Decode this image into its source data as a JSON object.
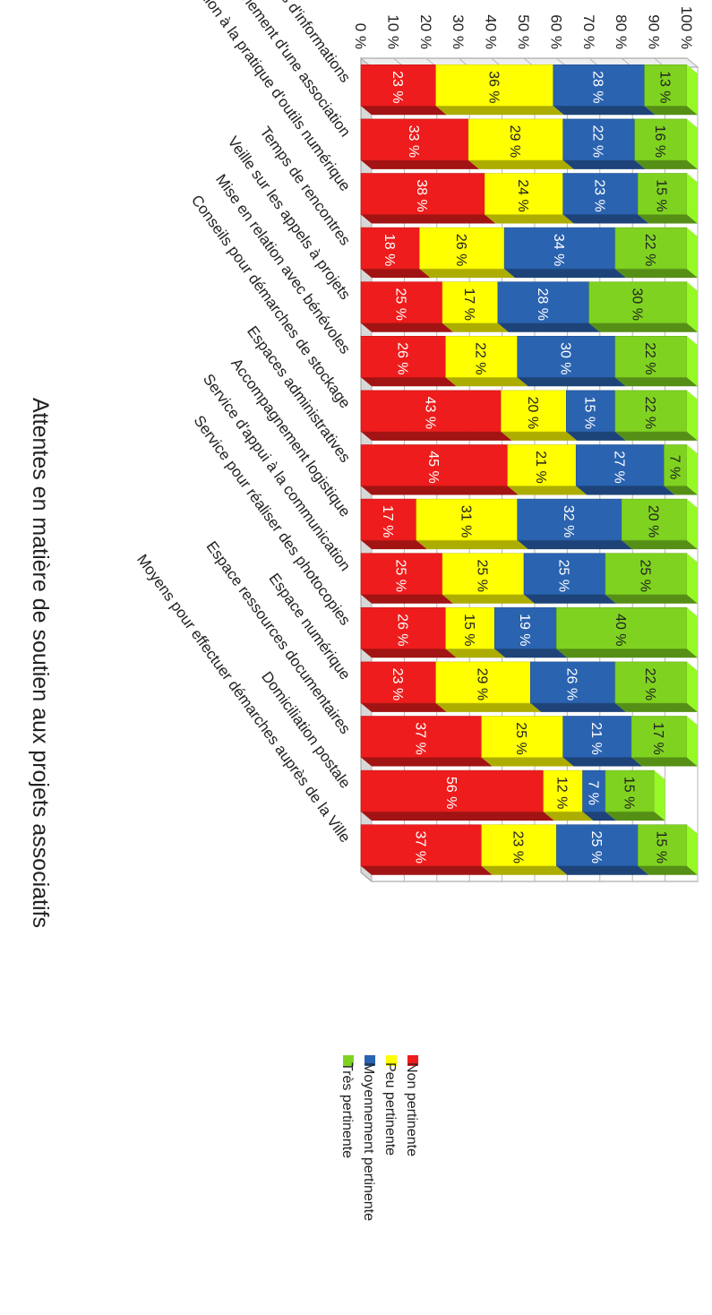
{
  "chart_data": {
    "type": "bar",
    "stacked": true,
    "percent_stacked": true,
    "three_d": true,
    "title": "Attentes en matière de soutien aux projets associatifs",
    "ylim": [
      0,
      100
    ],
    "y_ticks": [
      "0 %",
      "10 %",
      "20 %",
      "30 %",
      "40 %",
      "50 %",
      "60 %",
      "70 %",
      "80 %",
      "90 %",
      "100 %"
    ],
    "grid": true,
    "legend_position": "right",
    "categories": [
      "Temps d'informations",
      "Formations au fonctionnement d'une association",
      "Formation à la pratique d'outils numérique",
      "Temps de rencontres",
      "Veille sur les appels à projets",
      "Mise en relation avec bénévoles",
      "Conseils pour démarches de stockage",
      "Espaces administratives",
      "Accompagnement logistique",
      "Service d'appui à la communication",
      "Service pour réaliser des photocopies",
      "Espace numérique",
      "Espace ressources documentaires",
      "Domiciliation postale",
      "Moyens pour effectuer démarches auprès de la Ville"
    ],
    "series": [
      {
        "name": "Non pertinente",
        "color": "#ee1c1c",
        "label_color": "#ffffff",
        "values": [
          23,
          33,
          38,
          18,
          25,
          26,
          43,
          45,
          17,
          25,
          26,
          23,
          37,
          56,
          37
        ]
      },
      {
        "name": "Peu pertinente",
        "color": "#ffff00",
        "label_color": "#222222",
        "values": [
          36,
          29,
          24,
          26,
          17,
          22,
          20,
          21,
          31,
          25,
          15,
          29,
          25,
          12,
          23
        ]
      },
      {
        "name": "Moyennement pertinente",
        "color": "#2a63b0",
        "label_color": "#ffffff",
        "values": [
          28,
          22,
          23,
          34,
          28,
          30,
          15,
          27,
          32,
          25,
          19,
          26,
          21,
          7,
          25
        ]
      },
      {
        "name": "Très pertinente",
        "color": "#7fd320",
        "label_color": "#222222",
        "values": [
          13,
          16,
          15,
          22,
          30,
          22,
          22,
          7,
          20,
          25,
          40,
          22,
          17,
          15,
          15
        ]
      }
    ],
    "data_labels": [
      [
        "23 %",
        "36 %",
        "28 %",
        "13 %"
      ],
      [
        "33 %",
        "29 %",
        "22 %",
        "16 %"
      ],
      [
        "38 %",
        "24 %",
        "23 %",
        "15 %"
      ],
      [
        "18 %",
        "26 %",
        "34 %",
        "22 %"
      ],
      [
        "25 %",
        "17 %",
        "28 %",
        "30 %"
      ],
      [
        "26 %",
        "22 %",
        "30 %",
        "22 %"
      ],
      [
        "43 %",
        "20 %",
        "15 %",
        "22 %"
      ],
      [
        "45 %",
        "21 %",
        "27 %",
        "7 %"
      ],
      [
        "17 %",
        "31 %",
        "32 %",
        "20 %"
      ],
      [
        "25 %",
        "25 %",
        "25 %",
        "25 %"
      ],
      [
        "26 %",
        "15 %",
        "19 %",
        "40 %"
      ],
      [
        "23 %",
        "29 %",
        "26 %",
        "22 %"
      ],
      [
        "37 %",
        "25 %",
        "21 %",
        "17 %"
      ],
      [
        "56 %",
        "12 %",
        "7 %",
        "15 %"
      ],
      [
        "37 %",
        "23 %",
        "25 %",
        "15 %"
      ]
    ]
  }
}
